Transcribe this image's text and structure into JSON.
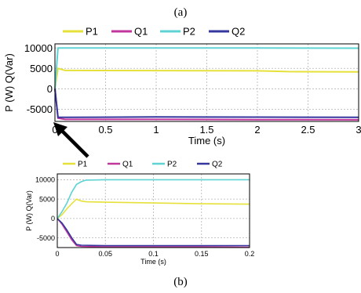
{
  "captions": {
    "top": "(a)",
    "bottom": "(b)"
  },
  "colors": {
    "P1": "#e6e13a",
    "Q1": "#c0369c",
    "P2": "#5fd3d3",
    "Q2": "#35379e",
    "grid": "#b4b4b4",
    "frame": "#000000"
  },
  "chart_data": [
    {
      "type": "line",
      "title": "",
      "xlabel": "Time (s)",
      "ylabel": "P (W) Q(Var)",
      "xlim": [
        0,
        3
      ],
      "ylim": [
        -8000,
        11000
      ],
      "xticks": [
        0,
        0.5,
        1,
        1.5,
        2,
        2.5,
        3
      ],
      "yticks": [
        -5000,
        0,
        5000,
        10000
      ],
      "grid": true,
      "legend": "top",
      "series": [
        {
          "name": "P1",
          "x": [
            0,
            0.03,
            0.1,
            1,
            2,
            2.3,
            3
          ],
          "y": [
            0,
            5000,
            4500,
            4450,
            4400,
            4200,
            4150
          ]
        },
        {
          "name": "Q1",
          "x": [
            0,
            0.03,
            0.1,
            1,
            2,
            3
          ],
          "y": [
            0,
            -7200,
            -7500,
            -7500,
            -7550,
            -7600
          ]
        },
        {
          "name": "P2",
          "x": [
            0,
            0.03,
            0.1,
            1,
            2,
            3
          ],
          "y": [
            0,
            10000,
            10000,
            10000,
            10000,
            9950
          ]
        },
        {
          "name": "Q2",
          "x": [
            0,
            0.03,
            0.1,
            1,
            2,
            3
          ],
          "y": [
            0,
            -7000,
            -7000,
            -6900,
            -6950,
            -7000
          ]
        }
      ]
    },
    {
      "type": "line",
      "title": "",
      "xlabel": "Time (s)",
      "ylabel": "P (W) Q(Var)",
      "xlim": [
        0,
        0.2
      ],
      "ylim": [
        -7500,
        11500
      ],
      "xticks": [
        "0",
        "0.05",
        "0.1",
        "0.15",
        "0.2"
      ],
      "yticks": [
        "-5000",
        "0",
        "5000",
        "10000"
      ],
      "grid": true,
      "legend": "top",
      "series": [
        {
          "name": "P1",
          "x": [
            0,
            0.005,
            0.01,
            0.015,
            0.02,
            0.025,
            0.03,
            0.05,
            0.1,
            0.15,
            0.2
          ],
          "y": [
            0,
            1000,
            2500,
            3800,
            5000,
            4500,
            4300,
            4200,
            4000,
            3800,
            3700
          ]
        },
        {
          "name": "Q1",
          "x": [
            0,
            0.005,
            0.01,
            0.015,
            0.02,
            0.025,
            0.05,
            0.1,
            0.15,
            0.2
          ],
          "y": [
            0,
            -1500,
            -3500,
            -5500,
            -7000,
            -7200,
            -7300,
            -7300,
            -7300,
            -7400
          ]
        },
        {
          "name": "P2",
          "x": [
            0,
            0.005,
            0.01,
            0.015,
            0.02,
            0.025,
            0.03,
            0.05,
            0.1,
            0.15,
            0.2
          ],
          "y": [
            0,
            1800,
            4000,
            6800,
            8800,
            9500,
            9900,
            10000,
            10000,
            10000,
            10000
          ]
        },
        {
          "name": "Q2",
          "x": [
            0,
            0.005,
            0.01,
            0.015,
            0.02,
            0.025,
            0.05,
            0.1,
            0.15,
            0.2
          ],
          "y": [
            0,
            -1200,
            -3000,
            -5000,
            -6700,
            -6900,
            -7000,
            -7000,
            -7000,
            -7000
          ]
        }
      ]
    }
  ]
}
